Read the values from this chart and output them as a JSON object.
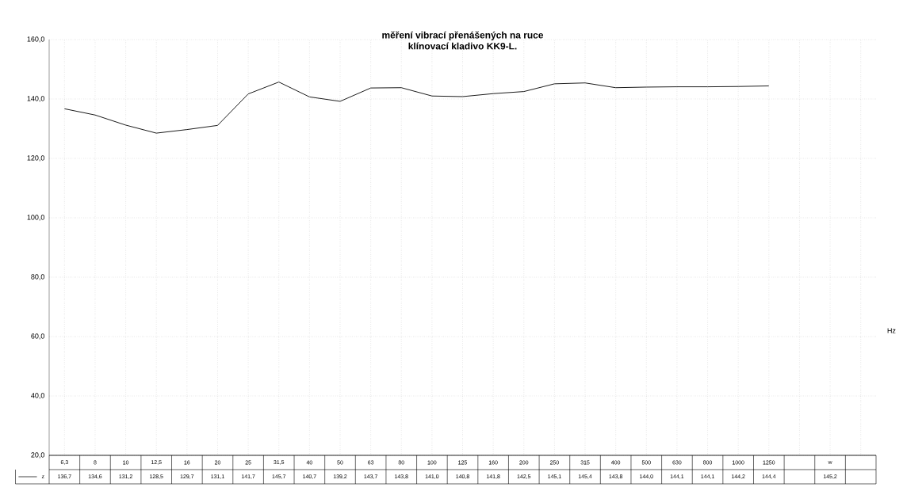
{
  "chart_data": {
    "type": "line",
    "title": "měření vibrací přenášených na ruce",
    "subtitle": "klínovací kladivo KK9-L.",
    "xlabel": "Hz",
    "categories": [
      "6,3",
      "8",
      "10",
      "12,5",
      "16",
      "20",
      "25",
      "31,5",
      "40",
      "50",
      "63",
      "80",
      "100",
      "125",
      "160",
      "200",
      "250",
      "315",
      "400",
      "500",
      "630",
      "800",
      "1000",
      "1250",
      null,
      "w",
      null
    ],
    "series": [
      {
        "name": "z",
        "color": "#1a1a1a",
        "values": [
          136.7,
          134.6,
          131.2,
          128.5,
          129.7,
          131.1,
          141.7,
          145.7,
          140.7,
          139.2,
          143.7,
          143.8,
          141.0,
          140.8,
          141.8,
          142.5,
          145.1,
          145.4,
          143.8,
          144.0,
          144.1,
          144.1,
          144.2,
          144.4,
          null,
          null,
          null
        ],
        "value_labels": [
          "136,7",
          "134,6",
          "131,2",
          "128,5",
          "129,7",
          "131,1",
          "141,7",
          "145,7",
          "140,7",
          "139,2",
          "143,7",
          "143,8",
          "141,0",
          "140,8",
          "141,8",
          "142,5",
          "145,1",
          "145,4",
          "143,8",
          "144,0",
          "144,1",
          "144,1",
          "144,2",
          "144,4",
          null,
          "145,2",
          null
        ]
      }
    ],
    "ylim": [
      20,
      160
    ],
    "yticks": [
      {
        "value": 20,
        "label": "20,0"
      },
      {
        "value": 40,
        "label": "40,0"
      },
      {
        "value": 60,
        "label": "60,0"
      },
      {
        "value": 80,
        "label": "80,0"
      },
      {
        "value": 100,
        "label": "100,0"
      },
      {
        "value": 120,
        "label": "120,0"
      },
      {
        "value": 140,
        "label": "140,0"
      },
      {
        "value": 160,
        "label": "160,0"
      }
    ],
    "grid": true,
    "marker": "none",
    "line_style": "solid"
  }
}
